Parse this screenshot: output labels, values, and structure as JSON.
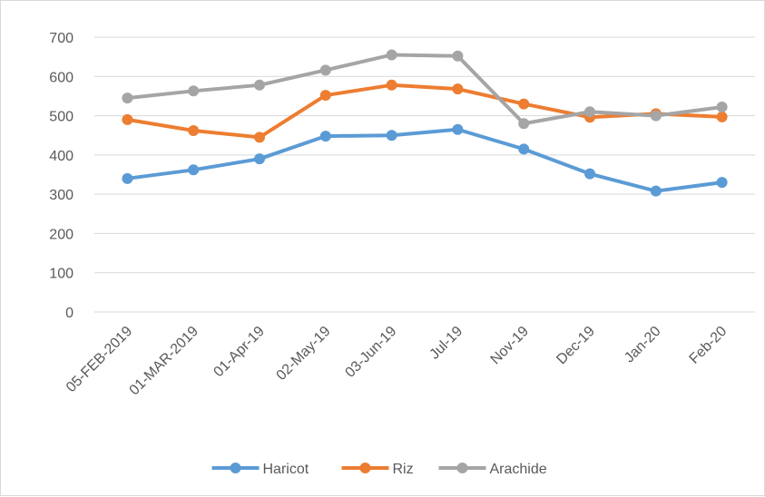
{
  "chart_data": {
    "type": "line",
    "categories": [
      "05-FEB-2019",
      "01-MAR-2019",
      "01-Apr-19",
      "02-May-19",
      "03-Jun-19",
      "Jul-19",
      "Nov-19",
      "Dec-19",
      "Jan-20",
      "Feb-20"
    ],
    "ylim": [
      0,
      700
    ],
    "yticks": [
      0,
      100,
      200,
      300,
      400,
      500,
      600,
      700
    ],
    "grid": true,
    "legend_position": "bottom",
    "series": [
      {
        "name": "Haricot",
        "color": "#5b9bd5",
        "values": [
          340,
          362,
          390,
          448,
          450,
          465,
          415,
          352,
          308,
          330
        ]
      },
      {
        "name": "Riz",
        "color": "#ed7d31",
        "values": [
          490,
          462,
          445,
          552,
          578,
          568,
          530,
          496,
          505,
          497
        ]
      },
      {
        "name": "Arachide",
        "color": "#a5a5a5",
        "values": [
          545,
          563,
          578,
          616,
          655,
          652,
          480,
          510,
          500,
          522
        ]
      }
    ]
  }
}
